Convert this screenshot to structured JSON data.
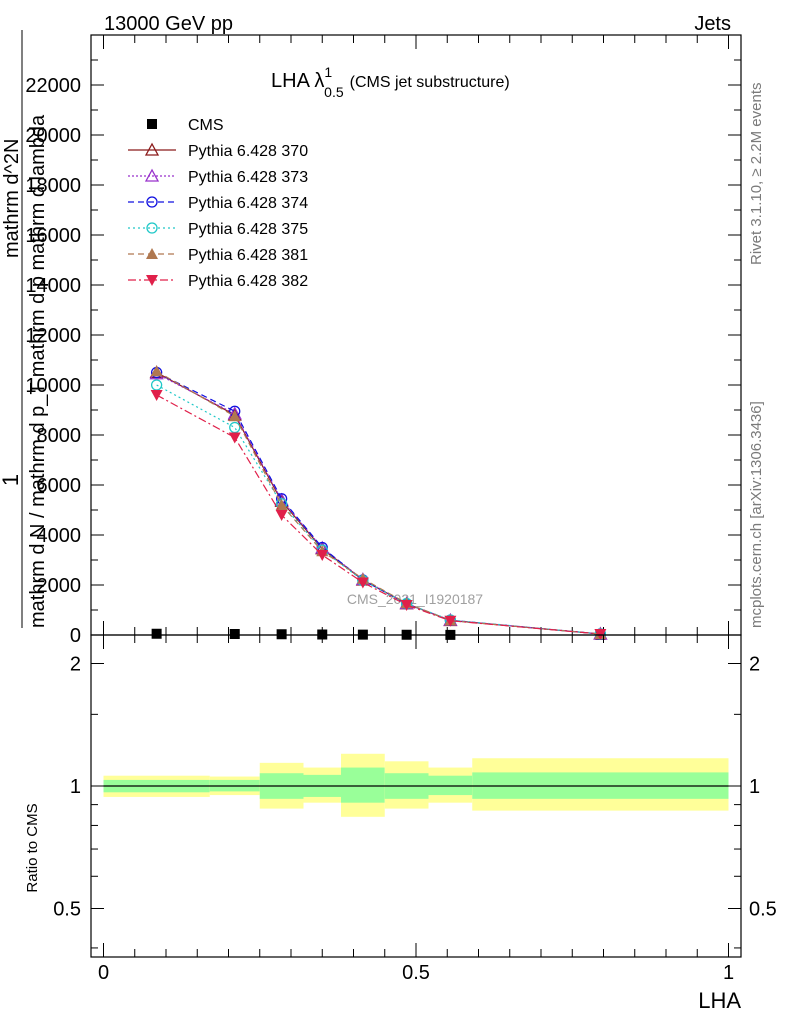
{
  "header": {
    "left": "13000 GeV pp",
    "right": "Jets"
  },
  "side_labels": {
    "rivet": "Rivet 3.1.10, ≥ 2.2M events",
    "mcplots": "mcplots.cern.ch [arXiv:1306.3436]"
  },
  "watermark": "CMS_2021_I1920187",
  "chart_data": [
    {
      "type": "line",
      "title": {
        "main": "LHA λ",
        "sup": "1",
        "sub": "0.5",
        "suffix": "(CMS jet substructure)"
      },
      "ylabel_parts": [
        "1",
        "mathrm d N / mathrm d p_T mathrm d p mathrm d lambda",
        "mathrm d^2N"
      ],
      "ylim": [
        0,
        24000
      ],
      "yticks": [
        0,
        2000,
        4000,
        6000,
        8000,
        10000,
        12000,
        14000,
        16000,
        18000,
        20000,
        22000
      ],
      "ytick_labels": [
        "0",
        "2000",
        "4000",
        "6000",
        "8000",
        "10000",
        "12000",
        "14000",
        "16000",
        "18000",
        "20000",
        "22000"
      ],
      "xlim": [
        -0.02,
        1.02
      ],
      "x": [
        0.085,
        0.21,
        0.285,
        0.35,
        0.415,
        0.485,
        0.555,
        0.795
      ],
      "series": [
        {
          "name": "CMS",
          "color": "#000000",
          "marker": "square",
          "dash": "",
          "values": [
            50,
            40,
            30,
            20,
            15,
            10,
            5,
            2
          ]
        },
        {
          "name": "Pythia 6.428 370",
          "color": "#8b1a1a",
          "marker": "triangle-open",
          "dash": "",
          "values": [
            10500,
            8800,
            5350,
            3450,
            2200,
            1250,
            580,
            40
          ]
        },
        {
          "name": "Pythia 6.428 373",
          "color": "#9932cc",
          "marker": "triangle-open",
          "dash": "2,2",
          "values": [
            10450,
            8850,
            5400,
            3480,
            2220,
            1260,
            590,
            40
          ]
        },
        {
          "name": "Pythia 6.428 374",
          "color": "#1010e0",
          "marker": "circle-open",
          "dash": "6,4",
          "values": [
            10500,
            8950,
            5450,
            3500,
            2200,
            1250,
            590,
            40
          ]
        },
        {
          "name": "Pythia 6.428 375",
          "color": "#20c8c8",
          "marker": "circle-open",
          "dash": "2,3",
          "values": [
            10000,
            8300,
            5250,
            3400,
            2180,
            1260,
            600,
            40
          ]
        },
        {
          "name": "Pythia 6.428 381",
          "color": "#b07850",
          "marker": "triangle-filled",
          "dash": "6,4",
          "values": [
            10550,
            8750,
            5200,
            3350,
            2250,
            1270,
            580,
            40
          ]
        },
        {
          "name": "Pythia 6.428 382",
          "color": "#e0204a",
          "marker": "triangle-down-filled",
          "dash": "8,3,2,3",
          "values": [
            9600,
            7900,
            4800,
            3200,
            2100,
            1200,
            570,
            40
          ]
        }
      ]
    },
    {
      "type": "area",
      "ylabel": "Ratio to CMS",
      "xlabel": "LHA",
      "ylim": [
        0.38,
        2.35
      ],
      "log_y": true,
      "yticks": [
        0.5,
        1,
        2
      ],
      "ytick_labels": [
        "0.5",
        "1",
        "2"
      ],
      "xticks": [
        0,
        0.5,
        1
      ],
      "xtick_labels": [
        "0",
        "0.5",
        "1"
      ],
      "bins": [
        {
          "x0": 0.0,
          "x1": 0.17,
          "inner": [
            0.965,
            1.035
          ],
          "outer": [
            0.94,
            1.06
          ]
        },
        {
          "x0": 0.17,
          "x1": 0.25,
          "inner": [
            0.97,
            1.035
          ],
          "outer": [
            0.95,
            1.055
          ]
        },
        {
          "x0": 0.25,
          "x1": 0.32,
          "inner": [
            0.93,
            1.075
          ],
          "outer": [
            0.88,
            1.14
          ]
        },
        {
          "x0": 0.32,
          "x1": 0.38,
          "inner": [
            0.94,
            1.065
          ],
          "outer": [
            0.91,
            1.11
          ]
        },
        {
          "x0": 0.38,
          "x1": 0.45,
          "inner": [
            0.91,
            1.11
          ],
          "outer": [
            0.84,
            1.2
          ]
        },
        {
          "x0": 0.45,
          "x1": 0.52,
          "inner": [
            0.93,
            1.075
          ],
          "outer": [
            0.88,
            1.15
          ]
        },
        {
          "x0": 0.52,
          "x1": 0.59,
          "inner": [
            0.95,
            1.06
          ],
          "outer": [
            0.91,
            1.11
          ]
        },
        {
          "x0": 0.59,
          "x1": 1.0,
          "inner": [
            0.93,
            1.08
          ],
          "outer": [
            0.87,
            1.17
          ]
        }
      ],
      "colors": {
        "inner": "#99ff99",
        "outer": "#ffff99",
        "line": "#000000"
      }
    }
  ]
}
